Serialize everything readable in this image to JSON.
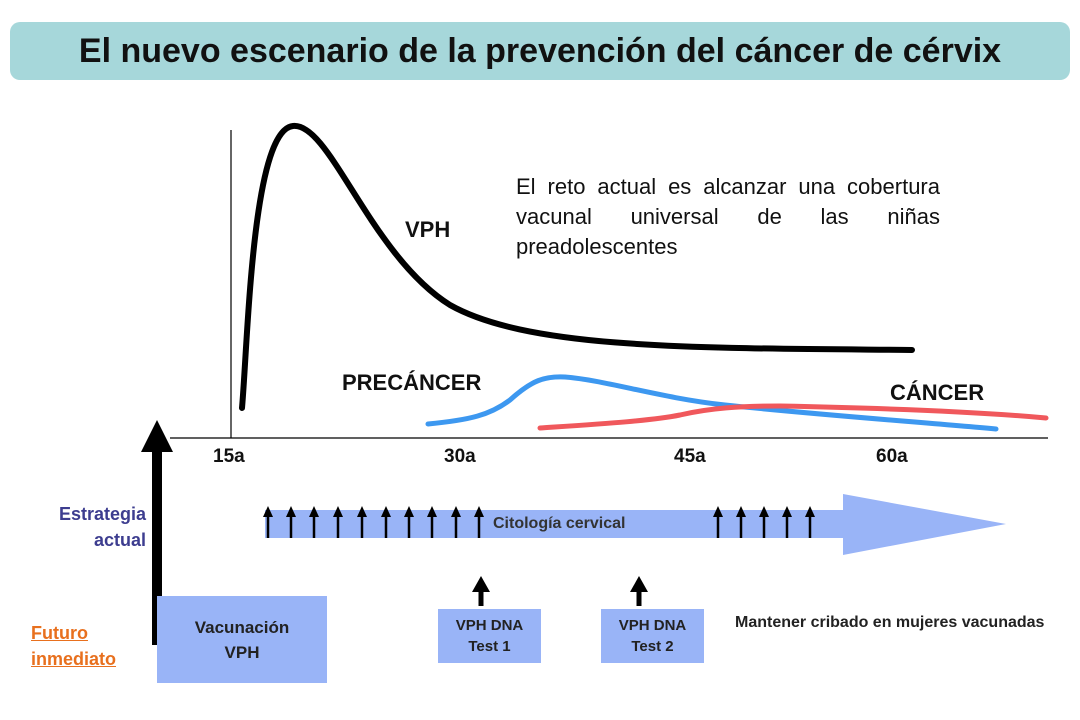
{
  "title": "El nuevo escenario de la prevención del cáncer de cérvix",
  "curves": {
    "vph": "VPH",
    "precancer": "PRECÁNCER",
    "cancer": "CÁNCER"
  },
  "challenge_text": "El reto actual es alcanzar una cobertura vacunal universal de las niñas preadolescentes",
  "ages": [
    "15a",
    "30a",
    "45a",
    "60a"
  ],
  "strategy": {
    "line1": "Estrategia",
    "line2": "actual"
  },
  "future": {
    "line1": "Futuro",
    "line2": "inmediato"
  },
  "cytology_label": "Citología cervical",
  "vaccination": {
    "line1": "Vacunación",
    "line2": "VPH"
  },
  "tests": [
    {
      "line1": "VPH DNA",
      "line2": "Test 1"
    },
    {
      "line1": "VPH DNA",
      "line2": "Test 2"
    }
  ],
  "maintain_text": "Mantener cribado en mujeres vacunadas",
  "colors": {
    "title_bg": "#a6d7da",
    "vph_curve": "#000000",
    "precancer_curve": "#3d98f0",
    "cancer_curve": "#f0585c",
    "timeline_arrow": "#99b4f7",
    "strategy_text": "#3d3d8f",
    "future_text": "#e8701e"
  }
}
